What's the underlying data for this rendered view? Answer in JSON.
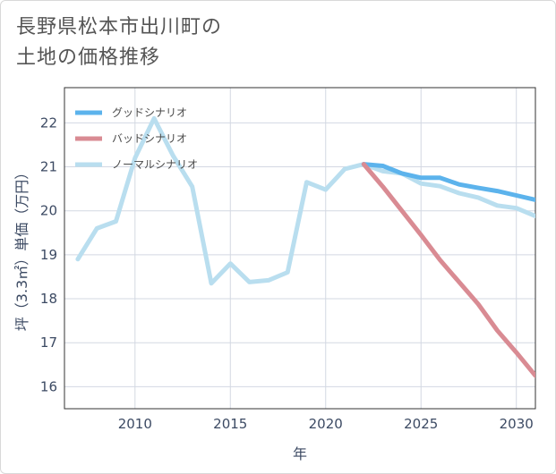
{
  "title_lines": [
    "長野県松本市出川町の",
    "土地の価格推移"
  ],
  "chart_data": {
    "type": "line",
    "xlabel": "年",
    "ylabel": "坪（3.3㎡）単価（万円）",
    "xlim": [
      2006.3,
      2031
    ],
    "ylim": [
      15.5,
      22.8
    ],
    "xticks": [
      2010,
      2015,
      2020,
      2025,
      2030
    ],
    "yticks": [
      16,
      17,
      18,
      19,
      20,
      21,
      22
    ],
    "grid": true,
    "legend_position": "top-left",
    "series": [
      {
        "name": "グッドシナリオ",
        "color": "#5cb3ec",
        "x": [
          2022,
          2023,
          2024,
          2025,
          2026,
          2027,
          2028,
          2029,
          2030,
          2031
        ],
        "y": [
          21.06,
          21.02,
          20.85,
          20.75,
          20.75,
          20.6,
          20.52,
          20.45,
          20.35,
          20.25
        ]
      },
      {
        "name": "バッドシナリオ",
        "color": "#d98b93",
        "x": [
          2022,
          2023,
          2024,
          2025,
          2026,
          2027,
          2028,
          2029,
          2030,
          2031
        ],
        "y": [
          21.06,
          20.55,
          20.0,
          19.45,
          18.88,
          18.38,
          17.88,
          17.28,
          16.78,
          16.25
        ]
      },
      {
        "name": "ノーマルシナリオ",
        "color": "#b9deef",
        "x": [
          2007,
          2008,
          2009,
          2010,
          2011,
          2012,
          2013,
          2014,
          2015,
          2016,
          2017,
          2018,
          2019,
          2020,
          2021,
          2022,
          2023,
          2024,
          2025,
          2026,
          2027,
          2028,
          2029,
          2030,
          2031
        ],
        "y": [
          18.9,
          19.6,
          19.76,
          21.2,
          22.1,
          21.25,
          20.55,
          18.35,
          18.8,
          18.38,
          18.42,
          18.6,
          20.65,
          20.48,
          20.95,
          21.06,
          20.9,
          20.85,
          20.62,
          20.56,
          20.4,
          20.3,
          20.12,
          20.06,
          19.88
        ]
      }
    ]
  }
}
